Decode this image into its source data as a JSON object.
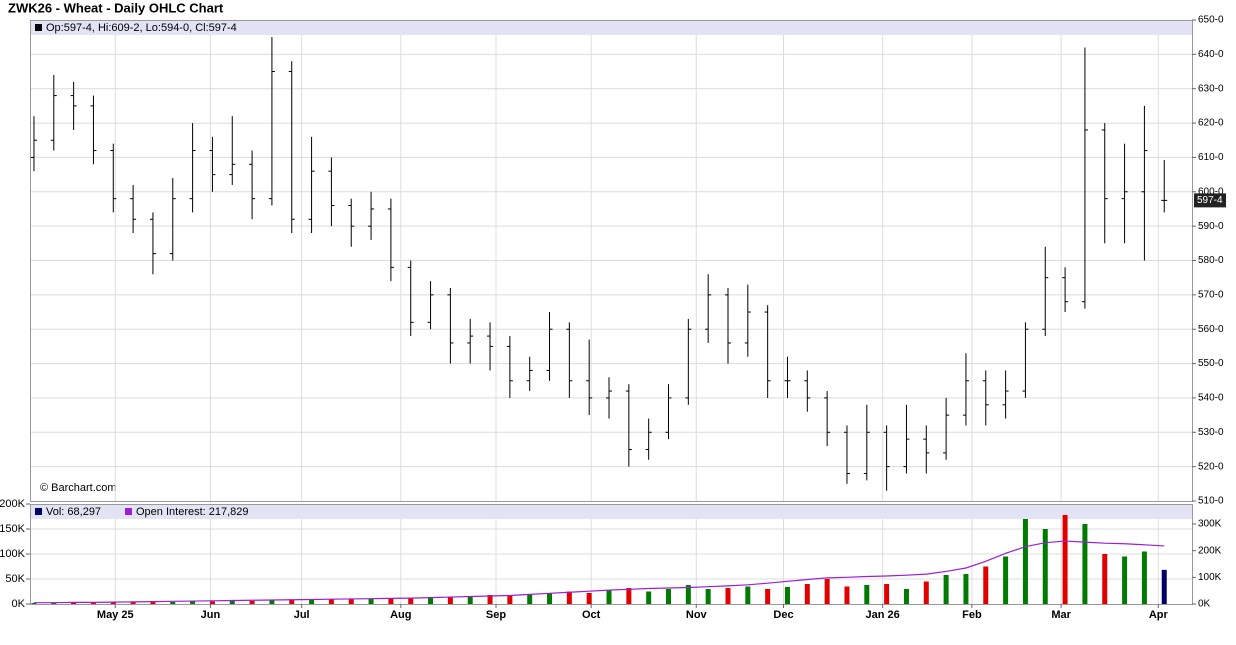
{
  "chart_data": [
    {
      "type": "ohlc",
      "title": "ZWK26 - Wheat - Daily OHLC Chart",
      "readout": "Op:597-4, Hi:609-2, Lo:594-0, Cl:597-4",
      "watermark": "© Barchart.com",
      "color": "#000000",
      "xlim": [
        -0.2,
        58.4
      ],
      "xticks": [
        {
          "value": 4.1,
          "label": "May 25"
        },
        {
          "value": 8.9,
          "label": "Jun"
        },
        {
          "value": 13.5,
          "label": "Jul"
        },
        {
          "value": 18.5,
          "label": "Aug"
        },
        {
          "value": 23.3,
          "label": "Sep"
        },
        {
          "value": 28.1,
          "label": "Oct"
        },
        {
          "value": 33.4,
          "label": "Nov"
        },
        {
          "value": 37.8,
          "label": "Dec"
        },
        {
          "value": 42.8,
          "label": "Jan 26"
        },
        {
          "value": 47.3,
          "label": "Feb"
        },
        {
          "value": 51.8,
          "label": "Mar"
        },
        {
          "value": 56.7,
          "label": "Apr"
        }
      ],
      "ylim": [
        510,
        650
      ],
      "yticks": [
        {
          "value": 510,
          "label": "510-0"
        },
        {
          "value": 520,
          "label": "520-0"
        },
        {
          "value": 530,
          "label": "530-0"
        },
        {
          "value": 540,
          "label": "540-0"
        },
        {
          "value": 550,
          "label": "550-0"
        },
        {
          "value": 560,
          "label": "560-0"
        },
        {
          "value": 570,
          "label": "570-0"
        },
        {
          "value": 580,
          "label": "580-0"
        },
        {
          "value": 590,
          "label": "590-0"
        },
        {
          "value": 600,
          "label": "600-0"
        },
        {
          "value": 610,
          "label": "610-0"
        },
        {
          "value": 620,
          "label": "620-0"
        },
        {
          "value": 630,
          "label": "630-0"
        },
        {
          "value": 640,
          "label": "640-0"
        },
        {
          "value": 650,
          "label": "650-0"
        }
      ],
      "grid": true,
      "last_price": {
        "value": 597.5,
        "label": "597-4"
      },
      "open": [
        610,
        615,
        628,
        625,
        612,
        598,
        592,
        582,
        598,
        612,
        605,
        608,
        598,
        635,
        592,
        606,
        596,
        590,
        595,
        578,
        562,
        570,
        556,
        558,
        555,
        545,
        548,
        560,
        545,
        540,
        542,
        525,
        530,
        540,
        560,
        570,
        556,
        565,
        545,
        545,
        540,
        530,
        518,
        530,
        520,
        528,
        524,
        535,
        545,
        538,
        542,
        560,
        575,
        568,
        618,
        598,
        600,
        597.5
      ],
      "high": [
        622,
        634,
        632,
        628,
        614,
        602,
        594,
        604,
        620,
        616,
        622,
        612,
        645,
        638,
        616,
        610,
        598,
        600,
        598,
        580,
        574,
        572,
        563,
        562,
        558,
        552,
        565,
        562,
        557,
        546,
        544,
        534,
        544,
        563,
        576,
        572,
        573,
        567,
        552,
        548,
        542,
        532,
        538,
        532,
        538,
        532,
        540,
        553,
        548,
        548,
        562,
        584,
        578,
        642,
        620,
        614,
        625,
        609.25
      ],
      "low": [
        606,
        612,
        618,
        608,
        594,
        588,
        576,
        580,
        594,
        600,
        602,
        592,
        596,
        588,
        588,
        590,
        584,
        586,
        574,
        558,
        560,
        550,
        550,
        548,
        540,
        542,
        545,
        540,
        535,
        534,
        520,
        522,
        528,
        538,
        556,
        550,
        552,
        540,
        540,
        536,
        526,
        515,
        516,
        513,
        518,
        518,
        522,
        532,
        532,
        534,
        540,
        558,
        565,
        566,
        585,
        585,
        580,
        594
      ],
      "close": [
        615,
        628,
        625,
        612,
        598,
        592,
        582,
        598,
        612,
        605,
        608,
        598,
        635,
        592,
        606,
        596,
        590,
        595,
        578,
        562,
        570,
        556,
        558,
        555,
        545,
        548,
        560,
        545,
        540,
        542,
        525,
        530,
        540,
        560,
        570,
        556,
        565,
        545,
        545,
        540,
        530,
        518,
        530,
        520,
        528,
        524,
        535,
        545,
        538,
        542,
        560,
        575,
        568,
        618,
        598,
        600,
        612,
        597.5
      ]
    },
    {
      "type": "volume",
      "up_color": "#007a00",
      "down_color": "#e00000",
      "current_color": "#000066",
      "ylim": [
        0,
        200000
      ],
      "yticks": [
        {
          "value": 0,
          "label": "0K"
        },
        {
          "value": 50000,
          "label": "50K"
        },
        {
          "value": 100000,
          "label": "100K"
        },
        {
          "value": 150000,
          "label": "150K"
        },
        {
          "value": 200000,
          "label": "200K"
        }
      ],
      "y2lim": [
        0,
        375000
      ],
      "y2ticks": [
        {
          "value": 0,
          "label": "0K"
        },
        {
          "value": 100000,
          "label": "100K"
        },
        {
          "value": 200000,
          "label": "200K"
        },
        {
          "value": 300000,
          "label": "300K"
        }
      ],
      "series": [
        {
          "name": "Vol: 68,297",
          "color": "#000066",
          "values": [
            2000,
            2000,
            3000,
            3000,
            3000,
            4000,
            4000,
            4000,
            5000,
            5000,
            6000,
            6000,
            7000,
            8000,
            8000,
            9000,
            9000,
            10000,
            12000,
            12000,
            14000,
            15000,
            16000,
            18000,
            18000,
            20000,
            22000,
            25000,
            22000,
            28000,
            32000,
            25000,
            30000,
            38000,
            30000,
            32000,
            35000,
            30000,
            34000,
            40000,
            50000,
            35000,
            38000,
            40000,
            30000,
            45000,
            58000,
            60000,
            75000,
            95000,
            170000,
            150000,
            178000,
            160000,
            100000,
            95000,
            105000,
            68297
          ]
        },
        {
          "name": "Open Interest: 217,829",
          "color": "#9a1fd6",
          "axis": "y2",
          "values": [
            5000,
            5000,
            6000,
            6000,
            7000,
            8000,
            9000,
            10000,
            11000,
            12000,
            13000,
            14000,
            15000,
            16000,
            17000,
            18000,
            19000,
            20000,
            21000,
            22000,
            24000,
            26000,
            28000,
            30000,
            32000,
            36000,
            40000,
            44000,
            48000,
            52000,
            55000,
            58000,
            60000,
            62000,
            65000,
            68000,
            72000,
            78000,
            85000,
            92000,
            98000,
            100000,
            103000,
            105000,
            108000,
            112000,
            122000,
            135000,
            160000,
            190000,
            215000,
            230000,
            236000,
            232000,
            228000,
            226000,
            222000,
            217829
          ]
        }
      ]
    }
  ]
}
